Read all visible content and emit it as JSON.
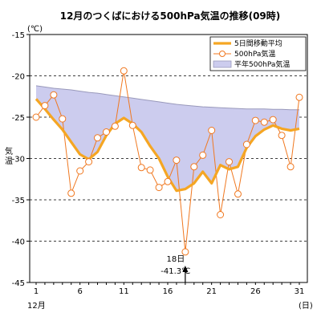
{
  "chart_data": {
    "type": "line",
    "title": "12月のつくばにおける500hPa気温の推移(09時)",
    "ylabel": "気温",
    "yunit": "(℃)",
    "xunit": "(日)",
    "xmonth": "12月",
    "ylim": [
      -45,
      -15
    ],
    "yticks": [
      -15,
      -20,
      -25,
      -30,
      -35,
      -40,
      -45
    ],
    "xlim": [
      1,
      31
    ],
    "xticks": [
      1,
      6,
      11,
      16,
      21,
      26,
      31
    ],
    "grid": "horizontal-dashed",
    "legend_position": "top-right",
    "x": [
      1,
      2,
      3,
      4,
      5,
      6,
      7,
      8,
      9,
      10,
      11,
      12,
      13,
      14,
      15,
      16,
      17,
      18,
      19,
      20,
      21,
      22,
      23,
      24,
      25,
      26,
      27,
      28,
      29,
      30,
      31
    ],
    "series": [
      {
        "name": "5日間移動平均",
        "color": "#f5a623",
        "values": [
          -22.8,
          -24.0,
          -25.3,
          -26.5,
          -28.0,
          -29.5,
          -30.1,
          -29.2,
          -27.2,
          -25.8,
          -25.1,
          -25.8,
          -26.8,
          -28.5,
          -30.0,
          -32.2,
          -33.9,
          -33.7,
          -33.0,
          -31.6,
          -33.0,
          -30.8,
          -31.3,
          -31.0,
          -28.7,
          -27.3,
          -26.5,
          -26.0,
          -26.4,
          -26.6,
          -26.4
        ]
      },
      {
        "name": "500hPa気温",
        "color": "#f07820",
        "values": [
          -25.0,
          -23.6,
          -22.3,
          -25.2,
          -34.2,
          -31.5,
          -30.4,
          -27.5,
          -26.8,
          -26.1,
          -19.4,
          -26.0,
          -31.1,
          -31.4,
          -33.5,
          -32.8,
          -30.2,
          -41.3,
          -31.0,
          -29.6,
          -26.6,
          -36.8,
          -30.4,
          -34.3,
          -28.3,
          -25.4,
          -25.6,
          -25.3,
          -27.2,
          -31.0,
          -22.6
        ]
      },
      {
        "name": "平年500hPa気温",
        "color": "#9999bb",
        "fill": "#ccccee",
        "values": [
          -21.2,
          -21.35,
          -21.5,
          -21.6,
          -21.7,
          -21.85,
          -22.0,
          -22.1,
          -22.25,
          -22.4,
          -22.55,
          -22.7,
          -22.85,
          -23.0,
          -23.15,
          -23.3,
          -23.45,
          -23.55,
          -23.65,
          -23.75,
          -23.8,
          -23.85,
          -23.9,
          -23.95,
          -24.0,
          -24.0,
          -24.0,
          -24.05,
          -24.05,
          -24.1,
          -24.1
        ]
      }
    ],
    "annotation": {
      "x": 18,
      "y": -41.3,
      "line1": "18日",
      "line2": "-41.3℃"
    }
  }
}
